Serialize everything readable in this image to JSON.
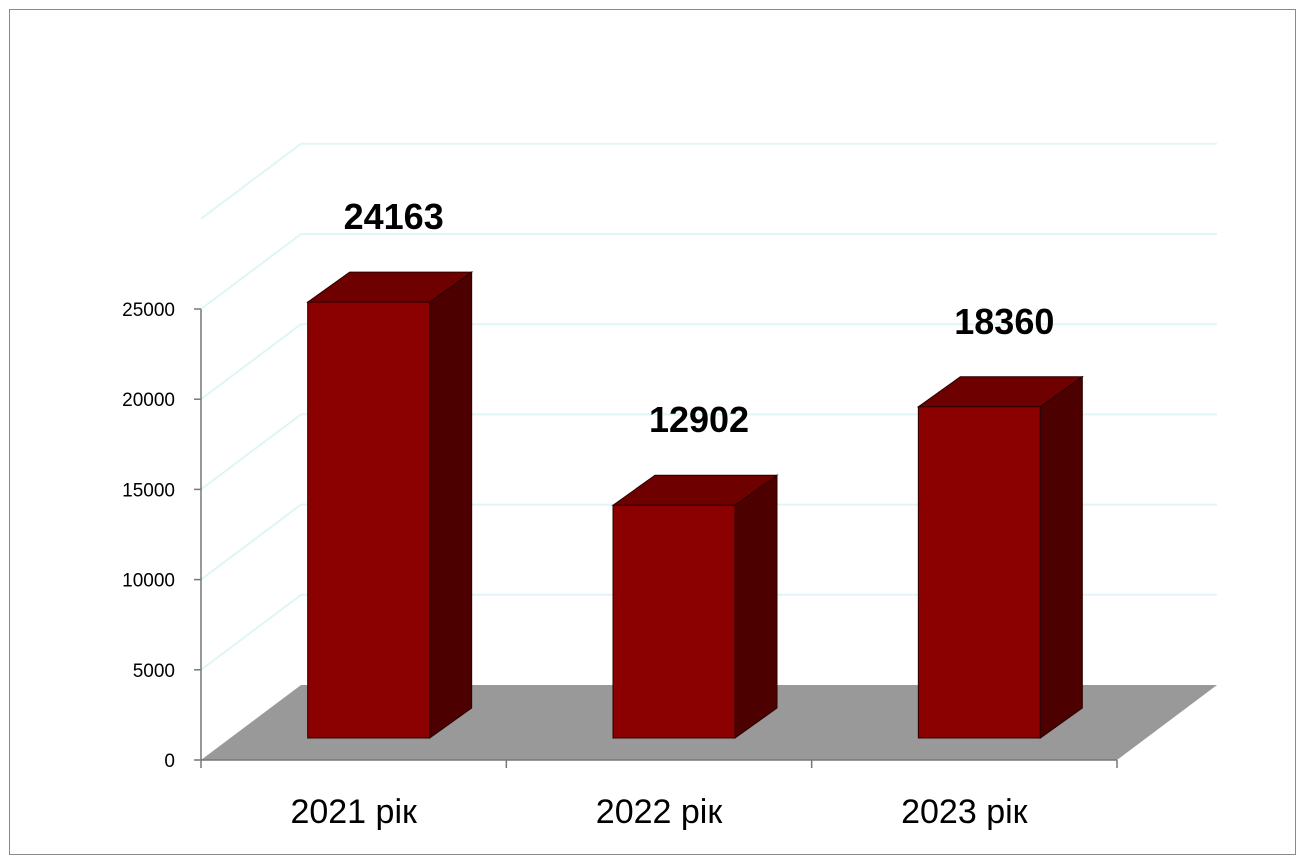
{
  "chart_data": {
    "type": "bar",
    "categories": [
      "2021 рік",
      "2022 рік",
      "2023 рік"
    ],
    "values": [
      24163,
      12902,
      18360
    ],
    "data_labels": [
      "24163",
      "12902",
      "18360"
    ],
    "yticks": [
      "0",
      "5000",
      "10000",
      "15000",
      "20000",
      "25000"
    ],
    "ylim": [
      0,
      25000
    ],
    "title": "",
    "xlabel": "",
    "ylabel": "",
    "grid": true,
    "style": "3d-column",
    "colors": {
      "bar_front": "#8b0000",
      "bar_top": "#6e0000",
      "bar_side": "#4d0000",
      "floor": "#999999",
      "gridline": "#e0f5f5"
    }
  }
}
